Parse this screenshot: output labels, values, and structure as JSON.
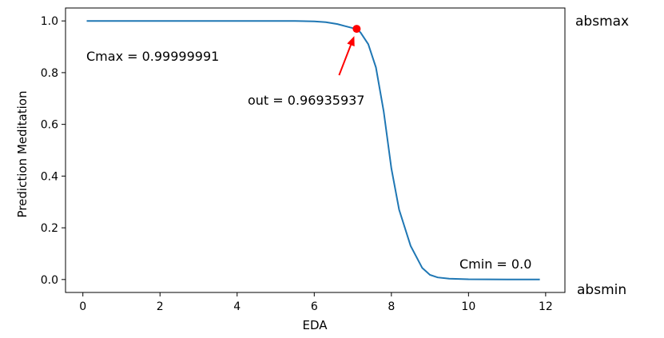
{
  "chart_data": {
    "type": "line",
    "xlabel": "EDA",
    "ylabel": "Prediction Meditation",
    "xlim": [
      -0.45,
      12.5
    ],
    "ylim": [
      -0.05,
      1.05
    ],
    "xticks": [
      "0",
      "2",
      "4",
      "6",
      "8",
      "10",
      "12"
    ],
    "yticks": [
      "0.0",
      "0.2",
      "0.4",
      "0.6",
      "0.8",
      "1.0"
    ],
    "grid": false,
    "series": [
      {
        "color": "#1f77b4",
        "x": [
          0.1,
          1,
          2,
          3,
          4,
          5,
          5.5,
          6,
          6.3,
          6.6,
          6.8,
          7.0,
          7.1,
          7.2,
          7.4,
          7.6,
          7.8,
          8.0,
          8.2,
          8.5,
          8.8,
          9.0,
          9.2,
          9.5,
          10,
          11,
          11.85
        ],
        "y": [
          1.0,
          1.0,
          1.0,
          1.0,
          1.0,
          1.0,
          0.9999,
          0.998,
          0.995,
          0.988,
          0.98,
          0.972,
          0.9694,
          0.955,
          0.91,
          0.82,
          0.65,
          0.43,
          0.27,
          0.13,
          0.045,
          0.018,
          0.008,
          0.003,
          0.001,
          0.0,
          0.0
        ]
      }
    ],
    "highlight_point": {
      "x": 7.1,
      "y": 0.9694,
      "color": "#ff0000"
    },
    "annotations": {
      "cmax": "Cmax = 0.99999991",
      "out": "out = 0.96935937",
      "cmin": "Cmin = 0.0",
      "absmax": "absmax",
      "absmin": "absmin"
    },
    "arrow_color": "#ff0000"
  }
}
